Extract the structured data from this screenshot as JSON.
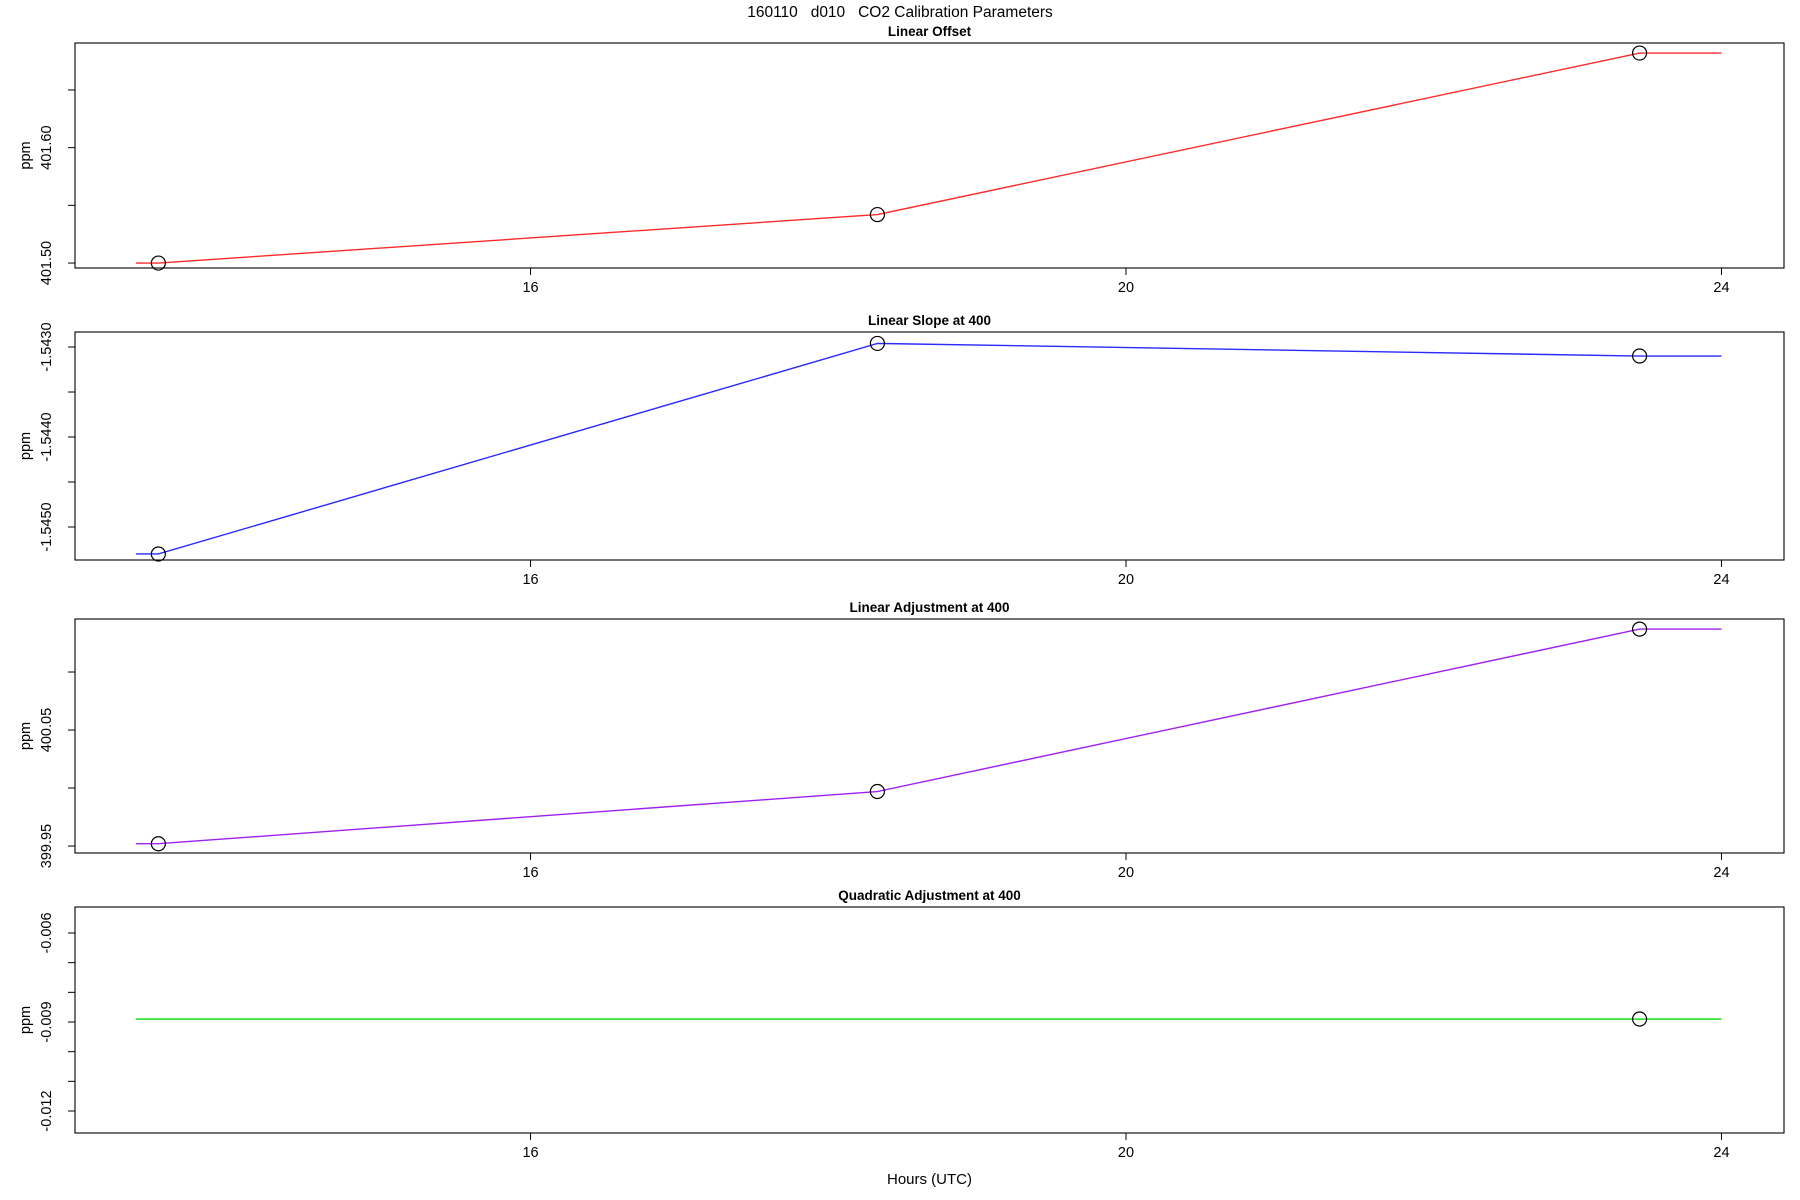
{
  "title": "160110   d010   CO2 Calibration Parameters",
  "xlabel": "Hours (UTC)",
  "chart_data": [
    {
      "type": "line",
      "title": "Linear Offset",
      "ylabel": "ppm",
      "line_color": "#ff2a2a",
      "marker": "open-circle",
      "marker_color": "#000000",
      "x": [
        13.5,
        18.33,
        23.45
      ],
      "y": [
        401.5,
        401.542,
        401.682
      ],
      "line_x": [
        13.35,
        13.5,
        18.33,
        23.45,
        24.0
      ],
      "line_y": [
        401.5,
        401.5,
        401.542,
        401.682,
        401.682
      ],
      "xlim": [
        12.94,
        24.42
      ],
      "ylim": [
        401.4957,
        401.6907
      ],
      "xticks": [
        {
          "value": 16,
          "label": "16"
        },
        {
          "value": 20,
          "label": "20"
        },
        {
          "value": 24,
          "label": "24"
        }
      ],
      "yticks": [
        {
          "value": 401.5,
          "label": "401.50"
        },
        {
          "value": 401.55,
          "label": ""
        },
        {
          "value": 401.6,
          "label": "401.60"
        },
        {
          "value": 401.65,
          "label": ""
        }
      ]
    },
    {
      "type": "line",
      "title": "Linear Slope at 400",
      "ylabel": "ppm",
      "line_color": "#2a2aff",
      "marker": "open-circle",
      "marker_color": "#000000",
      "x": [
        13.5,
        18.33,
        23.45
      ],
      "y": [
        -1.5453,
        -1.54296,
        -1.5431
      ],
      "line_x": [
        13.35,
        13.5,
        18.33,
        23.45,
        24.0
      ],
      "line_y": [
        -1.5453,
        -1.5453,
        -1.54296,
        -1.5431,
        -1.5431
      ],
      "xlim": [
        12.94,
        24.42
      ],
      "ylim": [
        -1.545367,
        -1.542833
      ],
      "xticks": [
        {
          "value": 16,
          "label": "16"
        },
        {
          "value": 20,
          "label": "20"
        },
        {
          "value": 24,
          "label": "24"
        }
      ],
      "yticks": [
        {
          "value": -1.545,
          "label": "-1.5450"
        },
        {
          "value": -1.5445,
          "label": ""
        },
        {
          "value": -1.544,
          "label": "-1.5440"
        },
        {
          "value": -1.5435,
          "label": ""
        },
        {
          "value": -1.543,
          "label": "-1.5430"
        }
      ]
    },
    {
      "type": "line",
      "title": "Linear Adjustment at 400",
      "ylabel": "ppm",
      "line_color": "#a020f0",
      "marker": "open-circle",
      "marker_color": "#000000",
      "x": [
        13.5,
        18.33,
        23.45
      ],
      "y": [
        399.952,
        399.997,
        400.137
      ],
      "line_x": [
        13.35,
        13.5,
        18.33,
        23.45,
        24.0
      ],
      "line_y": [
        399.952,
        399.952,
        399.997,
        400.137,
        400.137
      ],
      "xlim": [
        12.94,
        24.42
      ],
      "ylim": [
        399.944,
        400.1457
      ],
      "xticks": [
        {
          "value": 16,
          "label": "16"
        },
        {
          "value": 20,
          "label": "20"
        },
        {
          "value": 24,
          "label": "24"
        }
      ],
      "yticks": [
        {
          "value": 399.95,
          "label": "399.95"
        },
        {
          "value": 400.0,
          "label": ""
        },
        {
          "value": 400.05,
          "label": "400.05"
        },
        {
          "value": 400.1,
          "label": ""
        }
      ]
    },
    {
      "type": "line",
      "title": "Quadratic Adjustment at 400",
      "ylabel": "ppm",
      "line_color": "#00dd00",
      "marker": "open-circle",
      "marker_color": "#000000",
      "x": [
        23.45
      ],
      "y": [
        -0.0089
      ],
      "line_x": [
        13.35,
        24.0
      ],
      "line_y": [
        -0.0089,
        -0.0089
      ],
      "xlim": [
        12.94,
        24.42
      ],
      "ylim": [
        -0.012741,
        -0.005124
      ],
      "xticks": [
        {
          "value": 16,
          "label": "16"
        },
        {
          "value": 20,
          "label": "20"
        },
        {
          "value": 24,
          "label": "24"
        }
      ],
      "yticks": [
        {
          "value": -0.012,
          "label": "-0.012"
        },
        {
          "value": -0.011,
          "label": ""
        },
        {
          "value": -0.01,
          "label": ""
        },
        {
          "value": -0.009,
          "label": "-0.009"
        },
        {
          "value": -0.008,
          "label": ""
        },
        {
          "value": -0.007,
          "label": ""
        },
        {
          "value": -0.006,
          "label": "-0.006"
        }
      ]
    }
  ]
}
